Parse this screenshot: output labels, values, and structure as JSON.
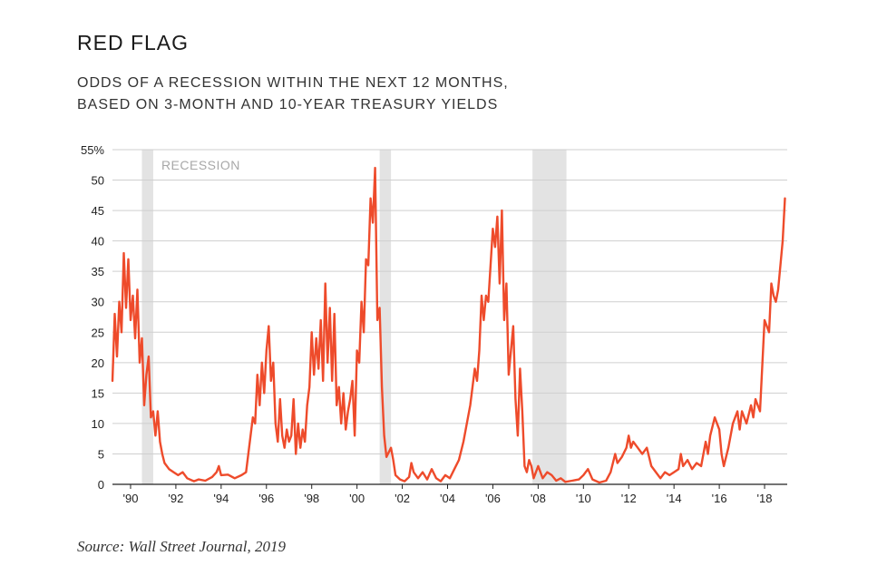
{
  "title": "RED FLAG",
  "subtitle_lines": [
    "ODDS OF A RECESSION WITHIN THE NEXT 12 MONTHS,",
    "BASED ON 3-MONTH AND 10-YEAR TREASURY YIELDS"
  ],
  "source": "Source: Wall Street Journal, 2019",
  "colors": {
    "line": "#ee4b2b",
    "recession_band": "#e3e3e3",
    "grid": "#cfcfcf",
    "axis": "#222222"
  },
  "chart_data": {
    "type": "line",
    "title": "ODDS OF A RECESSION WITHIN THE NEXT 12 MONTHS, BASED ON 3-MONTH AND 10-YEAR TREASURY YIELDS",
    "xlabel": "",
    "ylabel": "",
    "xlim": [
      1989.2,
      2019.0
    ],
    "ylim": [
      0,
      55
    ],
    "grid": true,
    "yticks": [
      0,
      5,
      10,
      15,
      20,
      25,
      30,
      35,
      40,
      45,
      50,
      55
    ],
    "ytick_labels": [
      "0",
      "5",
      "10",
      "15",
      "20",
      "25",
      "30",
      "35",
      "40",
      "45",
      "50",
      "55%"
    ],
    "xticks": [
      1990,
      1992,
      1994,
      1996,
      1998,
      2000,
      2002,
      2004,
      2006,
      2008,
      2010,
      2012,
      2014,
      2016,
      2018
    ],
    "xtick_labels": [
      "'90",
      "'92",
      "'94",
      "'96",
      "'98",
      "'00",
      "'02",
      "'04",
      "'06",
      "'08",
      "'10",
      "'12",
      "'14",
      "'16",
      "'18"
    ],
    "recession_label": "RECESSION",
    "recessions": [
      [
        1990.5,
        1991.0
      ],
      [
        2001.0,
        2001.5
      ],
      [
        2007.75,
        2009.25
      ]
    ],
    "series": [
      {
        "name": "",
        "points": [
          [
            1989.2,
            17
          ],
          [
            1989.3,
            28
          ],
          [
            1989.4,
            21
          ],
          [
            1989.5,
            30
          ],
          [
            1989.6,
            25
          ],
          [
            1989.7,
            38
          ],
          [
            1989.8,
            29
          ],
          [
            1989.9,
            37
          ],
          [
            1990.0,
            27
          ],
          [
            1990.1,
            31
          ],
          [
            1990.2,
            24
          ],
          [
            1990.3,
            32
          ],
          [
            1990.4,
            20
          ],
          [
            1990.5,
            24
          ],
          [
            1990.6,
            13
          ],
          [
            1990.7,
            18
          ],
          [
            1990.8,
            21
          ],
          [
            1990.9,
            11
          ],
          [
            1991.0,
            12
          ],
          [
            1991.1,
            8
          ],
          [
            1991.2,
            12
          ],
          [
            1991.3,
            7
          ],
          [
            1991.4,
            5
          ],
          [
            1991.5,
            3.5
          ],
          [
            1991.7,
            2.5
          ],
          [
            1991.9,
            2
          ],
          [
            1992.1,
            1.5
          ],
          [
            1992.3,
            2
          ],
          [
            1992.5,
            1
          ],
          [
            1992.8,
            0.5
          ],
          [
            1993.0,
            0.8
          ],
          [
            1993.3,
            0.6
          ],
          [
            1993.6,
            1.2
          ],
          [
            1993.8,
            2
          ],
          [
            1993.9,
            3
          ],
          [
            1994.0,
            1.5
          ],
          [
            1994.3,
            1.6
          ],
          [
            1994.6,
            1
          ],
          [
            1994.9,
            1.5
          ],
          [
            1995.1,
            2
          ],
          [
            1995.2,
            5
          ],
          [
            1995.3,
            8
          ],
          [
            1995.4,
            11
          ],
          [
            1995.5,
            10
          ],
          [
            1995.6,
            18
          ],
          [
            1995.7,
            13
          ],
          [
            1995.8,
            20
          ],
          [
            1995.9,
            15
          ],
          [
            1996.0,
            22
          ],
          [
            1996.1,
            26
          ],
          [
            1996.2,
            17
          ],
          [
            1996.3,
            20
          ],
          [
            1996.4,
            10
          ],
          [
            1996.5,
            7
          ],
          [
            1996.6,
            14
          ],
          [
            1996.7,
            8
          ],
          [
            1996.8,
            6
          ],
          [
            1996.9,
            9
          ],
          [
            1997.0,
            7
          ],
          [
            1997.1,
            8
          ],
          [
            1997.2,
            14
          ],
          [
            1997.3,
            5
          ],
          [
            1997.4,
            10
          ],
          [
            1997.5,
            6
          ],
          [
            1997.6,
            9
          ],
          [
            1997.7,
            7
          ],
          [
            1997.8,
            13
          ],
          [
            1997.9,
            16
          ],
          [
            1998.0,
            25
          ],
          [
            1998.1,
            18
          ],
          [
            1998.2,
            24
          ],
          [
            1998.3,
            19
          ],
          [
            1998.4,
            27
          ],
          [
            1998.5,
            17
          ],
          [
            1998.6,
            33
          ],
          [
            1998.7,
            20
          ],
          [
            1998.8,
            29
          ],
          [
            1998.9,
            17
          ],
          [
            1999.0,
            28
          ],
          [
            1999.1,
            13
          ],
          [
            1999.2,
            16
          ],
          [
            1999.3,
            10
          ],
          [
            1999.4,
            15
          ],
          [
            1999.5,
            9
          ],
          [
            1999.6,
            12
          ],
          [
            1999.7,
            14
          ],
          [
            1999.8,
            17
          ],
          [
            1999.9,
            8
          ],
          [
            2000.0,
            22
          ],
          [
            2000.1,
            20
          ],
          [
            2000.2,
            30
          ],
          [
            2000.3,
            25
          ],
          [
            2000.4,
            37
          ],
          [
            2000.5,
            36
          ],
          [
            2000.6,
            47
          ],
          [
            2000.7,
            43
          ],
          [
            2000.8,
            52
          ],
          [
            2000.9,
            27
          ],
          [
            2001.0,
            29
          ],
          [
            2001.1,
            16
          ],
          [
            2001.2,
            8
          ],
          [
            2001.3,
            4.5
          ],
          [
            2001.5,
            6
          ],
          [
            2001.6,
            4
          ],
          [
            2001.7,
            1.5
          ],
          [
            2001.9,
            0.8
          ],
          [
            2002.1,
            0.5
          ],
          [
            2002.3,
            1.2
          ],
          [
            2002.4,
            3.5
          ],
          [
            2002.5,
            2
          ],
          [
            2002.7,
            1
          ],
          [
            2002.9,
            2
          ],
          [
            2003.1,
            0.8
          ],
          [
            2003.3,
            2.5
          ],
          [
            2003.5,
            1
          ],
          [
            2003.7,
            0.5
          ],
          [
            2003.9,
            1.5
          ],
          [
            2004.1,
            1
          ],
          [
            2004.3,
            2.5
          ],
          [
            2004.5,
            4
          ],
          [
            2004.7,
            7
          ],
          [
            2004.9,
            11
          ],
          [
            2005.0,
            13
          ],
          [
            2005.1,
            16
          ],
          [
            2005.2,
            19
          ],
          [
            2005.3,
            17
          ],
          [
            2005.4,
            22
          ],
          [
            2005.5,
            31
          ],
          [
            2005.6,
            27
          ],
          [
            2005.7,
            31
          ],
          [
            2005.8,
            30
          ],
          [
            2005.9,
            36
          ],
          [
            2006.0,
            42
          ],
          [
            2006.1,
            39
          ],
          [
            2006.2,
            44
          ],
          [
            2006.3,
            33
          ],
          [
            2006.4,
            45
          ],
          [
            2006.5,
            27
          ],
          [
            2006.6,
            33
          ],
          [
            2006.7,
            18
          ],
          [
            2006.8,
            22
          ],
          [
            2006.9,
            26
          ],
          [
            2007.0,
            14
          ],
          [
            2007.1,
            8
          ],
          [
            2007.2,
            19
          ],
          [
            2007.3,
            12
          ],
          [
            2007.4,
            3
          ],
          [
            2007.5,
            2
          ],
          [
            2007.6,
            4
          ],
          [
            2007.7,
            3
          ],
          [
            2007.8,
            1
          ],
          [
            2008.0,
            3
          ],
          [
            2008.2,
            1
          ],
          [
            2008.4,
            2
          ],
          [
            2008.6,
            1.5
          ],
          [
            2008.8,
            0.6
          ],
          [
            2009.0,
            1
          ],
          [
            2009.2,
            0.4
          ],
          [
            2009.5,
            0.6
          ],
          [
            2009.8,
            0.8
          ],
          [
            2010.0,
            1.5
          ],
          [
            2010.2,
            2.5
          ],
          [
            2010.4,
            0.8
          ],
          [
            2010.7,
            0.3
          ],
          [
            2011.0,
            0.6
          ],
          [
            2011.2,
            2
          ],
          [
            2011.4,
            5
          ],
          [
            2011.5,
            3.5
          ],
          [
            2011.7,
            4.5
          ],
          [
            2011.9,
            6
          ],
          [
            2012.0,
            8
          ],
          [
            2012.1,
            6
          ],
          [
            2012.2,
            7
          ],
          [
            2012.4,
            6
          ],
          [
            2012.6,
            5
          ],
          [
            2012.8,
            6
          ],
          [
            2013.0,
            3
          ],
          [
            2013.2,
            2
          ],
          [
            2013.4,
            1
          ],
          [
            2013.6,
            2
          ],
          [
            2013.8,
            1.5
          ],
          [
            2014.0,
            2
          ],
          [
            2014.2,
            2.5
          ],
          [
            2014.3,
            5
          ],
          [
            2014.4,
            3
          ],
          [
            2014.6,
            4
          ],
          [
            2014.8,
            2.5
          ],
          [
            2015.0,
            3.5
          ],
          [
            2015.2,
            3
          ],
          [
            2015.4,
            7
          ],
          [
            2015.5,
            5
          ],
          [
            2015.6,
            8
          ],
          [
            2015.8,
            11
          ],
          [
            2015.9,
            10
          ],
          [
            2016.0,
            9
          ],
          [
            2016.1,
            5
          ],
          [
            2016.2,
            3
          ],
          [
            2016.4,
            6
          ],
          [
            2016.6,
            10
          ],
          [
            2016.8,
            12
          ],
          [
            2016.9,
            9
          ],
          [
            2017.0,
            12
          ],
          [
            2017.2,
            10
          ],
          [
            2017.4,
            13
          ],
          [
            2017.5,
            11
          ],
          [
            2017.6,
            14
          ],
          [
            2017.8,
            12
          ],
          [
            2018.0,
            27
          ],
          [
            2018.1,
            26
          ],
          [
            2018.2,
            25
          ],
          [
            2018.3,
            33
          ],
          [
            2018.4,
            31
          ],
          [
            2018.5,
            30
          ],
          [
            2018.6,
            32
          ],
          [
            2018.8,
            40
          ],
          [
            2018.9,
            47
          ]
        ]
      }
    ]
  }
}
